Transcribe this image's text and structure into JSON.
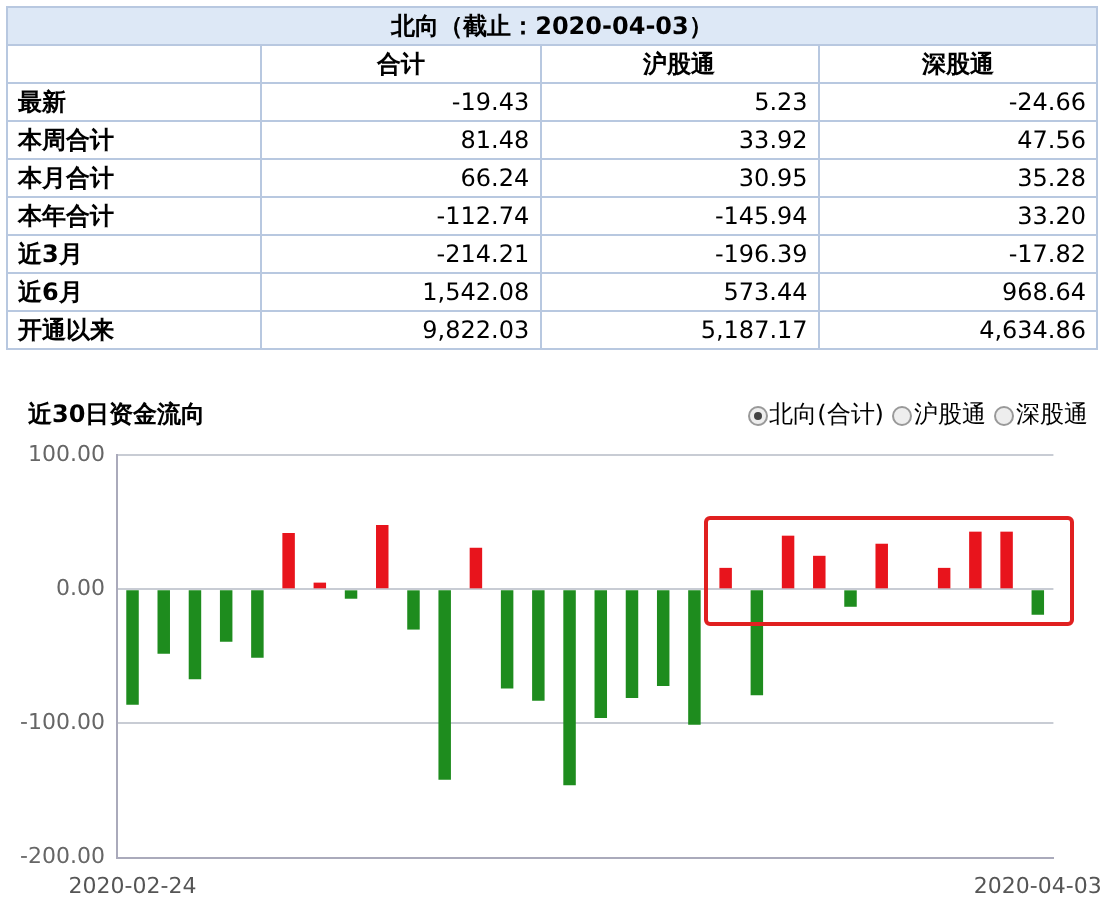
{
  "chart_data": [
    {
      "type": "heatmap",
      "title": "北向（截止：2020-04-03）",
      "categories": [
        "合计",
        "沪股通",
        "深股通"
      ],
      "y_categories": [
        "最新",
        "本周合计",
        "本月合计",
        "本年合计",
        "近3月",
        "近6月",
        "开通以来"
      ],
      "cells": [
        [
          -19.43,
          5.23,
          -24.66
        ],
        [
          81.48,
          33.92,
          47.56
        ],
        [
          66.24,
          30.95,
          35.28
        ],
        [
          -112.74,
          -145.94,
          33.2
        ],
        [
          -214.21,
          -196.39,
          -17.82
        ],
        [
          1542.08,
          573.44,
          968.64
        ],
        [
          9822.03,
          5187.17,
          4634.86
        ]
      ],
      "cell_labels": [
        [
          "-19.43",
          "5.23",
          "-24.66"
        ],
        [
          "81.48",
          "33.92",
          "47.56"
        ],
        [
          "66.24",
          "30.95",
          "35.28"
        ],
        [
          "-112.74",
          "-145.94",
          "33.20"
        ],
        [
          "-214.21",
          "-196.39",
          "-17.82"
        ],
        [
          "1,542.08",
          "573.44",
          "968.64"
        ],
        [
          "9,822.03",
          "5,187.17",
          "4,634.86"
        ]
      ]
    },
    {
      "type": "bar",
      "title": "近30日资金流向",
      "categories": [
        "2020-02-24",
        null,
        null,
        null,
        null,
        null,
        null,
        null,
        null,
        null,
        null,
        null,
        null,
        null,
        null,
        null,
        null,
        null,
        null,
        null,
        null,
        null,
        null,
        null,
        null,
        null,
        null,
        null,
        null,
        "2020-04-03"
      ],
      "values": [
        -86,
        -48,
        -67,
        -39,
        -51,
        42,
        5,
        -7,
        48,
        -30,
        -142,
        31,
        -74,
        -83,
        -146,
        -96,
        -81,
        -72,
        -101,
        16,
        -79,
        40,
        25,
        -13,
        34,
        null,
        16,
        43,
        43,
        -19
      ],
      "colors": [
        "#1e8c1e",
        "#1e8c1e",
        "#1e8c1e",
        "#1e8c1e",
        "#1e8c1e",
        "#e8141c",
        "#e8141c",
        "#1e8c1e",
        "#e8141c",
        "#1e8c1e",
        "#1e8c1e",
        "#e8141c",
        "#1e8c1e",
        "#1e8c1e",
        "#1e8c1e",
        "#1e8c1e",
        "#1e8c1e",
        "#1e8c1e",
        "#1e8c1e",
        "#e8141c",
        "#1e8c1e",
        "#e8141c",
        "#e8141c",
        "#1e8c1e",
        "#e8141c",
        "#1e8c1e",
        "#e8141c",
        "#e8141c",
        "#e8141c",
        "#1e8c1e"
      ],
      "ylim": [
        -200,
        100
      ],
      "yticks": [
        {
          "value": -200,
          "label": "-200.00"
        },
        {
          "value": -100,
          "label": "-100.00"
        },
        {
          "value": 0,
          "label": "0.00"
        },
        {
          "value": 100,
          "label": "100.00"
        }
      ],
      "grid": "y",
      "legend": false,
      "annotations": [
        "北向(合计)",
        "沪股通",
        "深股通"
      ]
    }
  ]
}
